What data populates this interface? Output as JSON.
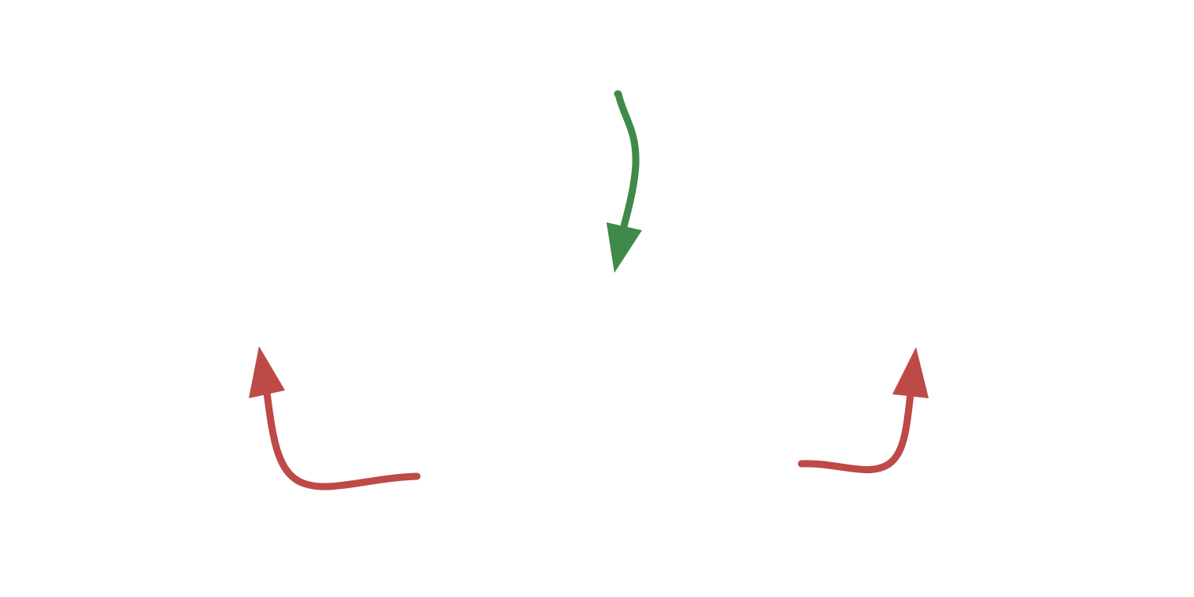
{
  "diagram": {
    "arrows": [
      {
        "name": "green-arrow-down",
        "color": "#3f8a4a",
        "direction": "down"
      },
      {
        "name": "red-arrow-left-up",
        "color": "#bd4a47",
        "direction": "up"
      },
      {
        "name": "red-arrow-right-up",
        "color": "#bd4a47",
        "direction": "up"
      }
    ]
  }
}
